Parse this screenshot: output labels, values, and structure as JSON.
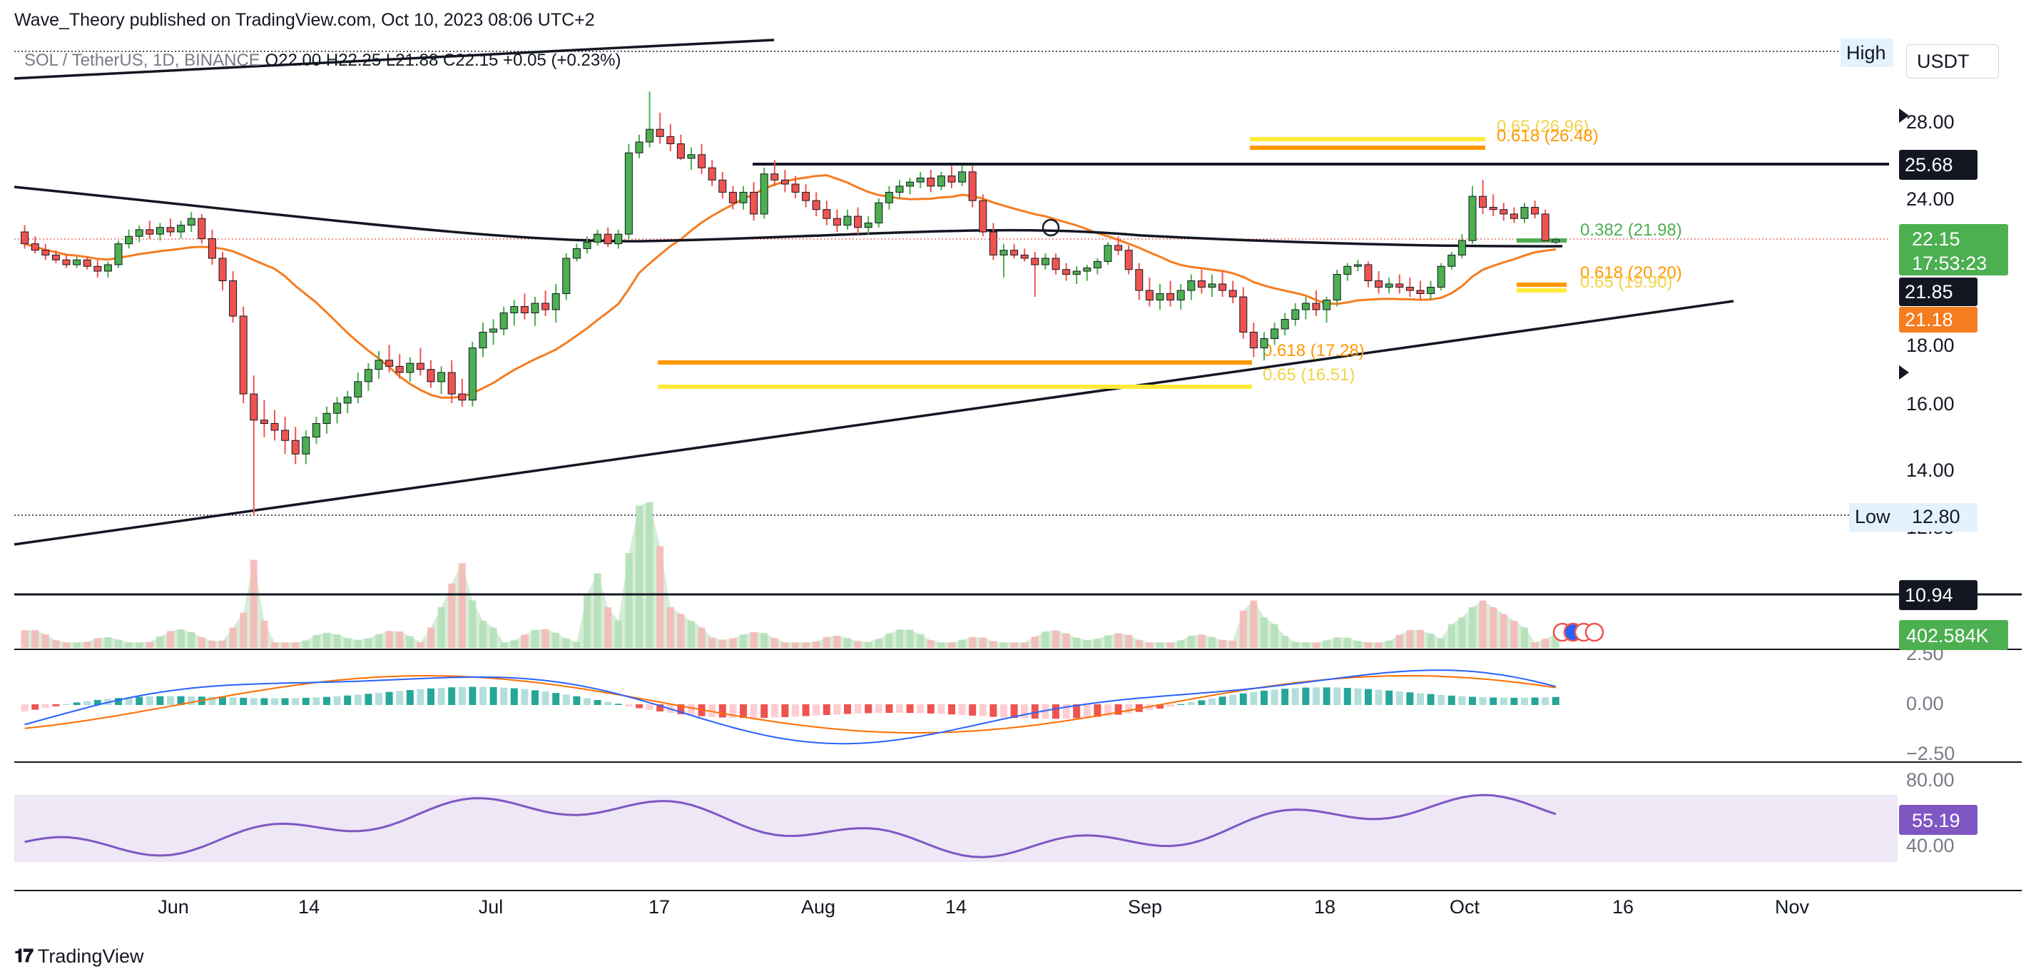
{
  "header": {
    "published": "Wave_Theory published on TradingView.com, Oct 10, 2023 08:06 UTC+2"
  },
  "footer": {
    "brand": "TradingView",
    "logo_icon": "tradingview-logo-icon"
  },
  "currency_button": "USDT",
  "colors": {
    "up": "#26a69a",
    "up_fill": "#4caf50",
    "down": "#ef5350",
    "ma_orange": "#f57c1f",
    "ma_black": "#131722",
    "macd": "#2962ff",
    "signal": "#ff6d00",
    "rsi": "#7e57c2",
    "fib_yellow": "#ffeb3b",
    "fib_orange": "#ff9800"
  },
  "chart_data": {
    "type": "candlestick",
    "symbol_line": {
      "symbol": "SOL / TetherUS, 1D, BINANCE",
      "o": "O22.00",
      "h": "H22.25",
      "l": "L21.88",
      "c": "C22.15",
      "chg": "+0.05 (+0.23%)"
    },
    "x_ticks": [
      "Jun",
      "14",
      "Jul",
      "17",
      "Aug",
      "14",
      "Sep",
      "18",
      "Oct",
      "16",
      "Nov"
    ],
    "price_ticks": [
      "28.00",
      "24.00",
      "18.00",
      "16.00",
      "14.00",
      "12.80"
    ],
    "price_badges": {
      "high_label": "High",
      "low_label": "Low",
      "low_value": "12.80",
      "resistance": "25.68",
      "last": "22.15",
      "countdown": "17:53:23",
      "ma_black": "21.85",
      "ma_orange": "21.18",
      "support": "10.94"
    },
    "fib_labels": [
      "0.65 (26.96)",
      "0.618 (26.48)",
      "0.382 (21.98)",
      "0.618 (20.20)",
      "0.65 (19.90)",
      "0.618 (17.28)",
      "0.65 (16.51)"
    ],
    "volume": {
      "last_label": "402.584K"
    },
    "macd": {
      "ticks": [
        "2.50",
        "0.00",
        "−2.50"
      ]
    },
    "rsi": {
      "ticks": [
        "80.00",
        "40.00"
      ],
      "last": "55.19"
    },
    "candles": [
      [
        1,
        22.5,
        22.8,
        21.6,
        21.9
      ],
      [
        2,
        21.9,
        22.3,
        21.3,
        21.5
      ],
      [
        3,
        21.5,
        21.9,
        20.9,
        21.2
      ],
      [
        4,
        21.2,
        21.5,
        20.7,
        20.9
      ],
      [
        5,
        20.9,
        21.2,
        20.4,
        20.6
      ],
      [
        6,
        20.6,
        21.1,
        20.4,
        20.9
      ],
      [
        7,
        20.9,
        21.1,
        20.3,
        20.5
      ],
      [
        8,
        20.5,
        20.9,
        20.0,
        20.2
      ],
      [
        9,
        20.2,
        20.8,
        20.0,
        20.6
      ],
      [
        10,
        20.6,
        22.1,
        20.4,
        21.9
      ],
      [
        11,
        21.9,
        22.6,
        21.6,
        22.3
      ],
      [
        12,
        22.3,
        22.8,
        22.0,
        22.6
      ],
      [
        13,
        22.6,
        23.0,
        22.2,
        22.4
      ],
      [
        14,
        22.4,
        22.9,
        22.1,
        22.7
      ],
      [
        15,
        22.7,
        23.1,
        22.3,
        22.5
      ],
      [
        16,
        22.5,
        23.0,
        22.2,
        22.8
      ],
      [
        17,
        22.8,
        23.4,
        22.5,
        23.1
      ],
      [
        18,
        23.1,
        23.3,
        21.9,
        22.2
      ],
      [
        19,
        22.2,
        22.6,
        20.6,
        21.0
      ],
      [
        20,
        21.0,
        21.4,
        19.6,
        19.9
      ],
      [
        21,
        19.9,
        20.2,
        18.6,
        18.8
      ],
      [
        22,
        18.8,
        19.1,
        16.0,
        16.3
      ],
      [
        23,
        16.3,
        16.9,
        12.8,
        15.5
      ],
      [
        24,
        15.5,
        16.1,
        15.0,
        15.4
      ],
      [
        25,
        15.4,
        15.8,
        14.9,
        15.2
      ],
      [
        26,
        15.2,
        15.6,
        14.5,
        14.9
      ],
      [
        27,
        14.9,
        15.3,
        14.2,
        14.5
      ],
      [
        28,
        14.5,
        15.2,
        14.2,
        15.0
      ],
      [
        29,
        15.0,
        15.6,
        14.8,
        15.4
      ],
      [
        30,
        15.4,
        15.9,
        15.1,
        15.7
      ],
      [
        31,
        15.7,
        16.2,
        15.4,
        16.0
      ],
      [
        32,
        16.0,
        16.4,
        15.7,
        16.2
      ],
      [
        33,
        16.2,
        17.0,
        16.0,
        16.7
      ],
      [
        34,
        16.7,
        17.3,
        16.4,
        17.1
      ],
      [
        35,
        17.1,
        17.7,
        16.8,
        17.4
      ],
      [
        36,
        17.4,
        17.9,
        17.0,
        17.2
      ],
      [
        37,
        17.2,
        17.6,
        16.8,
        17.0
      ],
      [
        38,
        17.0,
        17.5,
        16.7,
        17.3
      ],
      [
        39,
        17.3,
        17.8,
        16.9,
        17.1
      ],
      [
        40,
        17.1,
        17.4,
        16.5,
        16.7
      ],
      [
        41,
        16.7,
        17.2,
        16.3,
        17.0
      ],
      [
        42,
        17.0,
        17.4,
        16.0,
        16.3
      ],
      [
        43,
        16.3,
        16.8,
        15.9,
        16.1
      ],
      [
        44,
        16.1,
        18.0,
        15.9,
        17.8
      ],
      [
        45,
        17.8,
        18.6,
        17.5,
        18.3
      ],
      [
        46,
        18.3,
        18.7,
        17.9,
        18.4
      ],
      [
        47,
        18.4,
        19.1,
        18.2,
        18.9
      ],
      [
        48,
        18.9,
        19.3,
        18.5,
        19.1
      ],
      [
        49,
        19.1,
        19.5,
        18.7,
        18.9
      ],
      [
        50,
        18.9,
        19.4,
        18.5,
        19.2
      ],
      [
        51,
        19.2,
        19.6,
        18.8,
        19.0
      ],
      [
        52,
        19.0,
        19.8,
        18.6,
        19.5
      ],
      [
        53,
        19.5,
        21.3,
        19.3,
        21.0
      ],
      [
        54,
        21.0,
        21.9,
        20.8,
        21.6
      ],
      [
        55,
        21.6,
        22.3,
        21.3,
        22.0
      ],
      [
        56,
        22.0,
        22.6,
        21.8,
        22.4
      ],
      [
        57,
        22.4,
        22.7,
        21.7,
        21.9
      ],
      [
        58,
        21.9,
        22.6,
        21.6,
        22.4
      ],
      [
        59,
        22.4,
        26.8,
        22.2,
        26.3
      ],
      [
        60,
        26.3,
        27.3,
        26.0,
        26.9
      ],
      [
        61,
        26.9,
        29.3,
        26.6,
        27.6
      ],
      [
        62,
        27.6,
        28.4,
        26.8,
        27.2
      ],
      [
        63,
        27.2,
        27.9,
        26.4,
        26.8
      ],
      [
        64,
        26.8,
        27.3,
        25.9,
        26.0
      ],
      [
        65,
        26.0,
        26.6,
        25.4,
        26.2
      ],
      [
        66,
        26.2,
        26.8,
        25.2,
        25.5
      ],
      [
        67,
        25.5,
        25.9,
        24.6,
        24.9
      ],
      [
        68,
        24.9,
        25.3,
        24.0,
        24.3
      ],
      [
        69,
        24.3,
        24.6,
        23.5,
        23.8
      ],
      [
        70,
        23.8,
        24.6,
        23.5,
        24.3
      ],
      [
        71,
        24.3,
        24.8,
        23.0,
        23.3
      ],
      [
        72,
        23.3,
        25.5,
        23.1,
        25.2
      ],
      [
        73,
        25.2,
        25.9,
        24.6,
        24.9
      ],
      [
        74,
        24.9,
        25.4,
        24.3,
        24.7
      ],
      [
        75,
        24.7,
        25.1,
        24.0,
        24.3
      ],
      [
        76,
        24.3,
        24.7,
        23.6,
        23.9
      ],
      [
        77,
        23.9,
        24.3,
        23.2,
        23.5
      ],
      [
        78,
        23.5,
        23.9,
        22.8,
        23.1
      ],
      [
        79,
        23.1,
        23.5,
        22.5,
        22.8
      ],
      [
        80,
        22.8,
        23.5,
        22.6,
        23.2
      ],
      [
        81,
        23.2,
        23.6,
        22.4,
        22.7
      ],
      [
        82,
        22.7,
        23.2,
        22.4,
        22.9
      ],
      [
        83,
        22.9,
        24.0,
        22.7,
        23.8
      ],
      [
        84,
        23.8,
        24.6,
        23.5,
        24.3
      ],
      [
        85,
        24.3,
        24.9,
        24.0,
        24.6
      ],
      [
        86,
        24.6,
        25.0,
        24.2,
        24.8
      ],
      [
        87,
        24.8,
        25.3,
        24.5,
        25.0
      ],
      [
        88,
        25.0,
        25.4,
        24.3,
        24.6
      ],
      [
        89,
        24.6,
        25.3,
        24.4,
        25.1
      ],
      [
        90,
        25.1,
        25.6,
        24.5,
        24.8
      ],
      [
        91,
        24.8,
        25.6,
        24.6,
        25.3
      ],
      [
        92,
        25.3,
        25.6,
        23.6,
        23.9
      ],
      [
        93,
        23.9,
        24.2,
        22.3,
        22.5
      ],
      [
        94,
        22.5,
        22.9,
        20.9,
        21.2
      ],
      [
        95,
        21.2,
        21.9,
        20.0,
        21.5
      ],
      [
        96,
        21.5,
        21.9,
        21.0,
        21.2
      ],
      [
        97,
        21.2,
        21.6,
        20.8,
        21.0
      ],
      [
        98,
        21.0,
        21.4,
        19.4,
        20.6
      ],
      [
        99,
        20.6,
        21.3,
        20.3,
        21.0
      ],
      [
        100,
        21.0,
        21.3,
        20.1,
        20.3
      ],
      [
        101,
        20.3,
        20.7,
        19.9,
        20.1
      ],
      [
        102,
        20.1,
        20.5,
        19.8,
        20.2
      ],
      [
        103,
        20.2,
        20.6,
        19.9,
        20.4
      ],
      [
        104,
        20.4,
        21.0,
        20.1,
        20.8
      ],
      [
        105,
        20.8,
        22.0,
        20.6,
        21.8
      ],
      [
        106,
        21.8,
        22.3,
        21.2,
        21.5
      ],
      [
        107,
        21.5,
        21.8,
        20.1,
        20.3
      ],
      [
        108,
        20.3,
        20.7,
        19.3,
        19.6
      ],
      [
        109,
        19.6,
        20.0,
        19.1,
        19.3
      ],
      [
        110,
        19.3,
        19.8,
        19.0,
        19.5
      ],
      [
        111,
        19.5,
        19.9,
        19.1,
        19.3
      ],
      [
        112,
        19.3,
        19.8,
        19.0,
        19.6
      ],
      [
        113,
        19.6,
        20.1,
        19.3,
        19.9
      ],
      [
        114,
        19.9,
        20.3,
        19.5,
        19.7
      ],
      [
        115,
        19.7,
        20.1,
        19.4,
        19.8
      ],
      [
        116,
        19.8,
        20.2,
        19.4,
        19.6
      ],
      [
        117,
        19.6,
        19.9,
        19.2,
        19.4
      ],
      [
        118,
        19.4,
        19.7,
        18.1,
        18.3
      ],
      [
        119,
        18.3,
        18.6,
        17.5,
        17.8
      ],
      [
        120,
        17.8,
        18.3,
        17.4,
        18.1
      ],
      [
        121,
        18.1,
        18.6,
        17.9,
        18.4
      ],
      [
        122,
        18.4,
        18.9,
        18.2,
        18.7
      ],
      [
        123,
        18.7,
        19.2,
        18.5,
        19.0
      ],
      [
        124,
        19.0,
        19.4,
        18.7,
        19.2
      ],
      [
        125,
        19.2,
        19.6,
        18.8,
        19.0
      ],
      [
        126,
        19.0,
        19.4,
        18.6,
        19.3
      ],
      [
        127,
        19.3,
        20.3,
        19.1,
        20.1
      ],
      [
        128,
        20.1,
        20.7,
        19.9,
        20.5
      ],
      [
        129,
        20.5,
        20.9,
        20.2,
        20.6
      ],
      [
        130,
        20.6,
        20.8,
        19.7,
        19.9
      ],
      [
        131,
        19.9,
        20.2,
        19.5,
        19.7
      ],
      [
        132,
        19.7,
        20.0,
        19.5,
        19.8
      ],
      [
        133,
        19.8,
        20.1,
        19.5,
        19.7
      ],
      [
        134,
        19.7,
        20.0,
        19.4,
        19.6
      ],
      [
        135,
        19.6,
        19.9,
        19.3,
        19.5
      ],
      [
        136,
        19.5,
        19.9,
        19.3,
        19.7
      ],
      [
        137,
        19.7,
        20.7,
        19.6,
        20.5
      ],
      [
        138,
        20.5,
        21.4,
        20.3,
        21.2
      ],
      [
        139,
        21.2,
        22.4,
        21.0,
        22.1
      ],
      [
        140,
        22.1,
        24.6,
        21.9,
        24.1
      ],
      [
        141,
        24.1,
        24.9,
        23.3,
        23.6
      ],
      [
        142,
        23.6,
        24.2,
        23.2,
        23.5
      ],
      [
        143,
        23.5,
        23.8,
        23.0,
        23.3
      ],
      [
        144,
        23.3,
        23.6,
        22.9,
        23.1
      ],
      [
        145,
        23.1,
        23.8,
        22.9,
        23.6
      ],
      [
        146,
        23.6,
        23.9,
        23.1,
        23.3
      ],
      [
        147,
        23.3,
        23.5,
        22.0,
        22.1
      ],
      [
        148,
        22.0,
        22.25,
        21.88,
        22.15
      ]
    ]
  }
}
